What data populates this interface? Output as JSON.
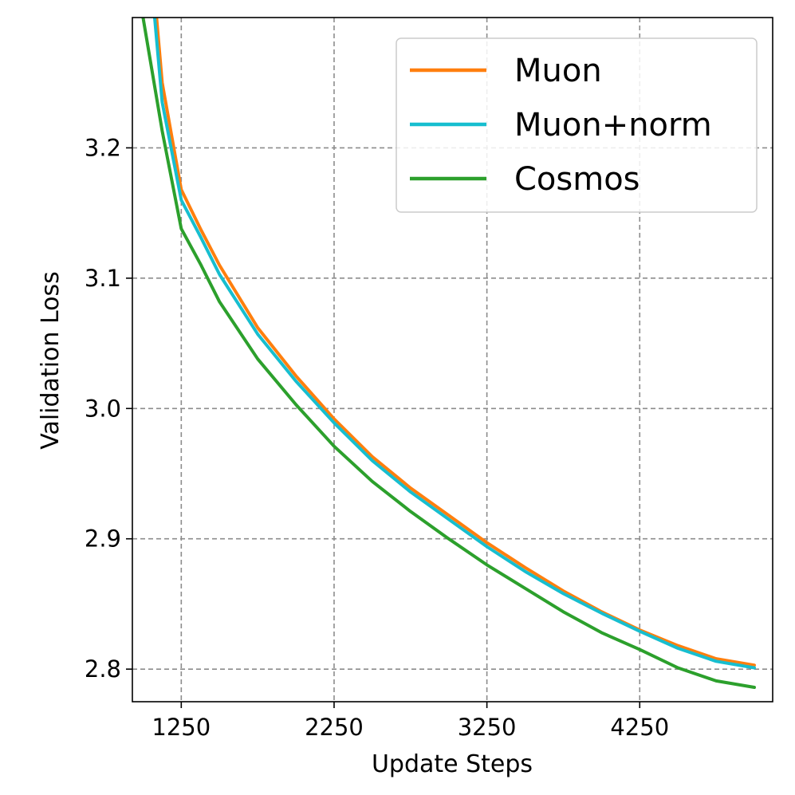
{
  "chart_data": {
    "type": "line",
    "xlabel": "Update Steps",
    "ylabel": "Validation Loss",
    "xlim": [
      930,
      5120
    ],
    "ylim": [
      2.775,
      3.3
    ],
    "xticks": [
      1250,
      2250,
      3250,
      4250
    ],
    "xtick_labels": [
      "1250",
      "2250",
      "3250",
      "4250"
    ],
    "yticks": [
      2.8,
      2.9,
      3.0,
      3.1,
      3.2
    ],
    "ytick_labels": [
      "2.8",
      "2.9",
      "3.0",
      "3.1",
      "3.2"
    ],
    "grid": true,
    "legend_position": "top-right",
    "x": [
      1000,
      1125,
      1250,
      1375,
      1500,
      1750,
      2000,
      2250,
      2500,
      2750,
      3000,
      3250,
      3500,
      3750,
      4000,
      4250,
      4500,
      4750,
      5000
    ],
    "series": [
      {
        "name": "Muon",
        "color": "#ff7f0e",
        "values": [
          3.42,
          3.25,
          3.168,
          3.138,
          3.11,
          3.062,
          3.025,
          2.992,
          2.963,
          2.939,
          2.918,
          2.897,
          2.878,
          2.86,
          2.844,
          2.83,
          2.818,
          2.808,
          2.803
        ]
      },
      {
        "name": "Muon+norm",
        "color": "#17becf",
        "values": [
          3.4,
          3.235,
          3.16,
          3.132,
          3.103,
          3.057,
          3.021,
          2.989,
          2.96,
          2.936,
          2.915,
          2.894,
          2.875,
          2.858,
          2.843,
          2.829,
          2.816,
          2.806,
          2.801
        ]
      },
      {
        "name": "Cosmos",
        "color": "#2ca02c",
        "values": [
          3.3,
          3.213,
          3.138,
          3.111,
          3.082,
          3.038,
          3.003,
          2.971,
          2.944,
          2.921,
          2.9,
          2.88,
          2.862,
          2.844,
          2.828,
          2.815,
          2.801,
          2.791,
          2.786
        ]
      }
    ]
  }
}
